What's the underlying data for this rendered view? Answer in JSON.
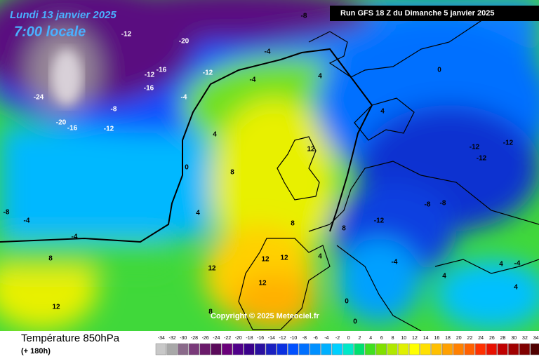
{
  "header": {
    "date": "Lundi 13 janvier 2025",
    "time": "7:00 locale",
    "run": "Run GFS 18 Z du Dimanche 5 janvier 2025"
  },
  "copyright": "Copyright © 2025 Meteociel.fr",
  "footer": {
    "title": "Température 850hPa",
    "lead": "(+ 180h)"
  },
  "scale": {
    "values": [
      -34,
      -32,
      -30,
      -28,
      -26,
      -24,
      -22,
      -20,
      -18,
      -16,
      -14,
      -12,
      -10,
      -8,
      -6,
      -4,
      -2,
      0,
      2,
      4,
      6,
      8,
      10,
      12,
      14,
      16,
      18,
      20,
      22,
      24,
      26,
      28,
      30,
      32,
      34
    ],
    "colors": [
      "#c8c8c8",
      "#a8a8a8",
      "#8a6a8a",
      "#7a3a7a",
      "#6a1a6a",
      "#5a0a5a",
      "#6a007a",
      "#50008a",
      "#3a008a",
      "#2a10a0",
      "#1a20c0",
      "#0a30e0",
      "#0050ff",
      "#0070ff",
      "#0090ff",
      "#00b0ff",
      "#00d0ff",
      "#00e8c8",
      "#00e070",
      "#40e020",
      "#80e000",
      "#b0e800",
      "#e0f000",
      "#ffff00",
      "#ffe000",
      "#ffc000",
      "#ffa000",
      "#ff8000",
      "#ff6000",
      "#ff3000",
      "#e81000",
      "#c00000",
      "#a00000",
      "#800000",
      "#500000"
    ]
  },
  "contour_labels": [
    -8,
    -12,
    -20,
    -16,
    -12,
    -12,
    -16,
    -4,
    -8,
    -24,
    -20,
    -16,
    -12,
    -4,
    -4,
    4,
    4,
    0,
    4,
    0,
    8,
    12,
    -12,
    -12,
    -12,
    -8,
    -8,
    -12,
    8,
    4,
    -8,
    -4,
    -4,
    8,
    12,
    12,
    12,
    12,
    8,
    4,
    -4,
    0,
    0,
    12,
    8,
    4,
    4,
    4,
    -4
  ]
}
